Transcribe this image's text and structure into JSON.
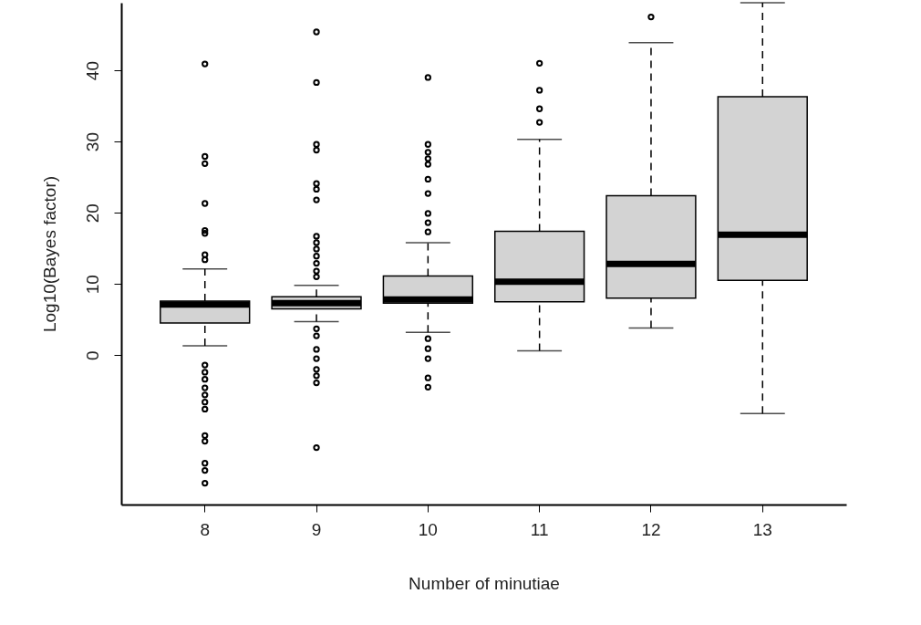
{
  "chart_data": {
    "type": "box",
    "xlabel": "Number of minutiae",
    "ylabel": "Log10(Bayes factor)",
    "categories": [
      "8",
      "9",
      "10",
      "11",
      "12",
      "13"
    ],
    "ylim": [
      -21,
      49.5
    ],
    "yticks": [
      0,
      10,
      20,
      30,
      40
    ],
    "marker": "circle",
    "series": [
      {
        "color": "#d3d3d3",
        "boxes": [
          {
            "low": 1.3,
            "q1": 4.5,
            "median": 7.1,
            "q3": 7.6,
            "high": 12.1,
            "outliers": [
              40.9,
              27.9,
              26.9,
              21.3,
              17.5,
              17.1,
              14.1,
              13.4,
              -1.4,
              -2.4,
              -3.4,
              -4.6,
              -5.6,
              -6.6,
              -7.6,
              -11.3,
              -12.1,
              -15.2,
              -16.2,
              -18.0
            ]
          },
          {
            "low": 4.7,
            "q1": 6.5,
            "median": 7.3,
            "q3": 8.2,
            "high": 9.8,
            "outliers": [
              45.4,
              38.3,
              29.6,
              28.8,
              24.1,
              23.3,
              21.8,
              16.7,
              15.8,
              14.9,
              13.9,
              12.9,
              11.8,
              11.0,
              3.7,
              2.7,
              0.8,
              -0.5,
              -2.0,
              -2.9,
              -3.9,
              -13.0
            ]
          },
          {
            "low": 3.2,
            "q1": 7.3,
            "median": 7.8,
            "q3": 11.1,
            "high": 15.8,
            "outliers": [
              39.0,
              29.6,
              28.5,
              27.6,
              26.8,
              24.7,
              22.7,
              19.9,
              18.6,
              17.3,
              2.3,
              0.9,
              -0.5,
              -3.2,
              -4.5
            ]
          },
          {
            "low": 0.6,
            "q1": 7.5,
            "median": 10.3,
            "q3": 17.4,
            "high": 30.3,
            "outliers": [
              41.0,
              37.2,
              34.6,
              32.7
            ]
          },
          {
            "low": 3.8,
            "q1": 8.0,
            "median": 12.8,
            "q3": 22.4,
            "high": 43.9,
            "outliers": [
              47.5
            ]
          },
          {
            "low": -8.2,
            "q1": 10.5,
            "median": 16.9,
            "q3": 36.3,
            "high": 49.5
          }
        ]
      }
    ]
  }
}
